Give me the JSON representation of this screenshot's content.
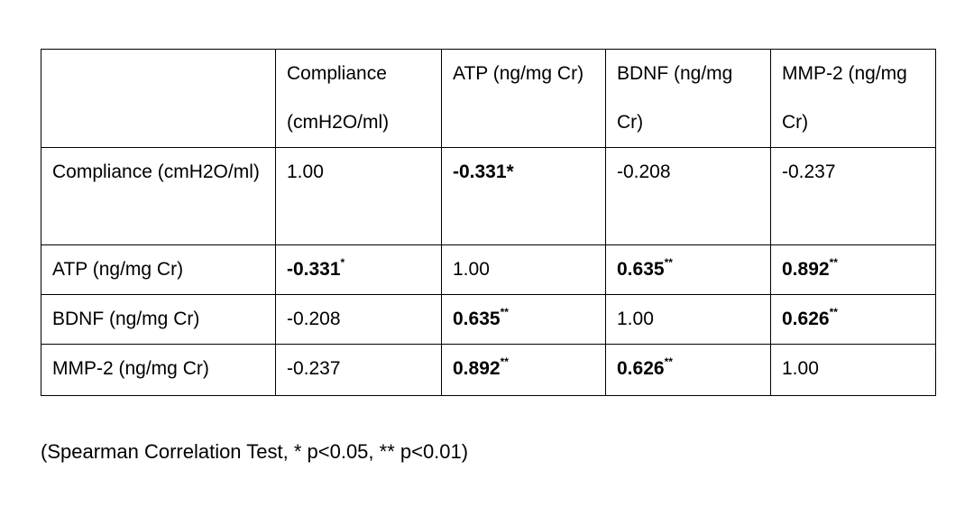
{
  "table": {
    "header": [
      "Compliance (cmH2O/ml)",
      "ATP (ng/mg Cr)",
      "BDNF (ng/mg Cr)",
      "MMP-2 (ng/mg Cr)"
    ],
    "rows": [
      {
        "label": "Compliance (cmH2O/ml)",
        "cells": [
          {
            "text": "1.00"
          },
          {
            "text": "-0.331*",
            "bold": true
          },
          {
            "text": "-0.208"
          },
          {
            "text": "-0.237"
          }
        ]
      },
      {
        "label": "ATP (ng/mg Cr)",
        "cells": [
          {
            "text": "-0.331",
            "sup": "*",
            "bold": true
          },
          {
            "text": "1.00"
          },
          {
            "text": "0.635",
            "sup": "**",
            "bold": true
          },
          {
            "text": "0.892",
            "sup": "**",
            "bold": true
          }
        ]
      },
      {
        "label": "BDNF (ng/mg Cr)",
        "cells": [
          {
            "text": "-0.208"
          },
          {
            "text": "0.635",
            "sup": "**",
            "bold": true
          },
          {
            "text": "1.00"
          },
          {
            "text": "0.626",
            "sup": "**",
            "bold": true
          }
        ]
      },
      {
        "label": "MMP-2 (ng/mg Cr)",
        "cells": [
          {
            "text": "-0.237"
          },
          {
            "text": "0.892",
            "sup": "**",
            "bold": true
          },
          {
            "text": "0.626",
            "sup": "**",
            "bold": true
          },
          {
            "text": "1.00"
          }
        ]
      }
    ],
    "caption": "(Spearman Correlation Test, * p<0.05, ** p<0.01)"
  }
}
